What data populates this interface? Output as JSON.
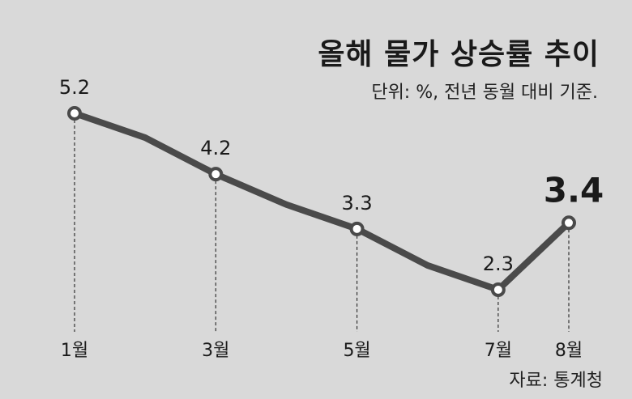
{
  "title": "올해 물가 상승률 추이",
  "subtitle": "단위: %, 전년 동월 대비 기준.",
  "source": "자료: 통계청",
  "colors": {
    "background": "#d9d9d9",
    "line": "#4a4a4a",
    "marker_fill": "#ffffff",
    "text": "#1a1a1a"
  },
  "chart_data": {
    "type": "line",
    "title": "올해 물가 상승률 추이",
    "subtitle": "단위: %, 전년 동월 대비 기준.",
    "x": [
      1,
      2,
      3,
      4,
      5,
      6,
      7,
      8
    ],
    "values": [
      5.2,
      4.8,
      4.2,
      3.7,
      3.3,
      2.7,
      2.3,
      3.4
    ],
    "labeled_points": [
      {
        "x": 1,
        "tick": "1월",
        "label": "5.2",
        "value": 5.2
      },
      {
        "x": 3,
        "tick": "3월",
        "label": "4.2",
        "value": 4.2
      },
      {
        "x": 5,
        "tick": "5월",
        "label": "3.3",
        "value": 3.3
      },
      {
        "x": 7,
        "tick": "7월",
        "label": "2.3",
        "value": 2.3
      },
      {
        "x": 8,
        "tick": "8월",
        "label": "3.4",
        "value": 3.4,
        "highlight": true
      }
    ],
    "xlim": [
      1,
      8
    ],
    "ylim": [
      2.3,
      5.2
    ],
    "grid": false,
    "legend": "none"
  }
}
